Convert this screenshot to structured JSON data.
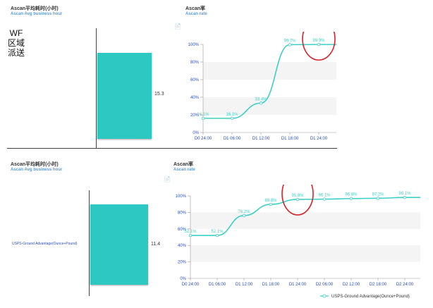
{
  "panel1": {
    "bar_title": "Ascan平均耗时(小时)",
    "bar_subtitle": "Ascan Avg business hour",
    "left_label": [
      "WF",
      "区域",
      "派送"
    ],
    "bar_value_label": "15.3",
    "line_title": "Ascan率",
    "line_subtitle": "Ascan rate",
    "doc_icon": "document-icon"
  },
  "panel2": {
    "bar_title": "Ascan平均耗时(小时)",
    "bar_subtitle": "Ascan Avg business hour",
    "left_label": "USPS-Ground Advantage(Ounce+Pound)",
    "bar_value_label": "11.4",
    "line_title": "Ascan率",
    "line_subtitle": "Ascan rate",
    "doc_icon": "document-icon"
  },
  "colors": {
    "bar": "#2ec8c2",
    "line": "#3ecfc4",
    "highlight_circle": "#d8232a",
    "axis_text": "#2b4fb8"
  },
  "chart_data": [
    {
      "type": "line",
      "x": [
        "D0 24:00",
        "D1 06:00",
        "D1 12:00",
        "D1 18:00",
        "D1 24:00"
      ],
      "values": [
        16.1,
        16.1,
        33.4,
        99.7,
        99.9
      ],
      "labels": [
        "16.1%",
        "16.1%",
        "33.4%",
        "99.7%",
        "99.9%"
      ],
      "yticks": [
        "0%",
        "20%",
        "40%",
        "60%",
        "80%",
        "100%"
      ],
      "ylim": [
        0,
        100
      ]
    },
    {
      "type": "line",
      "x": [
        "D0 24:00",
        "D1 06:00",
        "D1 12:00",
        "D1 18:00",
        "D1 24:00",
        "D2 06:00",
        "D2 12:00",
        "D2 18:00",
        "D2 24:00"
      ],
      "values": [
        52.1,
        52.1,
        76.2,
        89.8,
        95.8,
        96.1,
        96.8,
        97.2,
        98.1
      ],
      "labels": [
        "52.1%",
        "52.1%",
        "76.2%",
        "89.8%",
        "95.8%",
        "96.1%",
        "96.8%",
        "97.2%",
        "98.1%"
      ],
      "yticks": [
        "0%",
        "20%",
        "40%",
        "60%",
        "80%",
        "100%"
      ],
      "ylim": [
        0,
        100
      ],
      "legend": "USPS-Ground Advantage(Ounce+Pound)"
    }
  ]
}
